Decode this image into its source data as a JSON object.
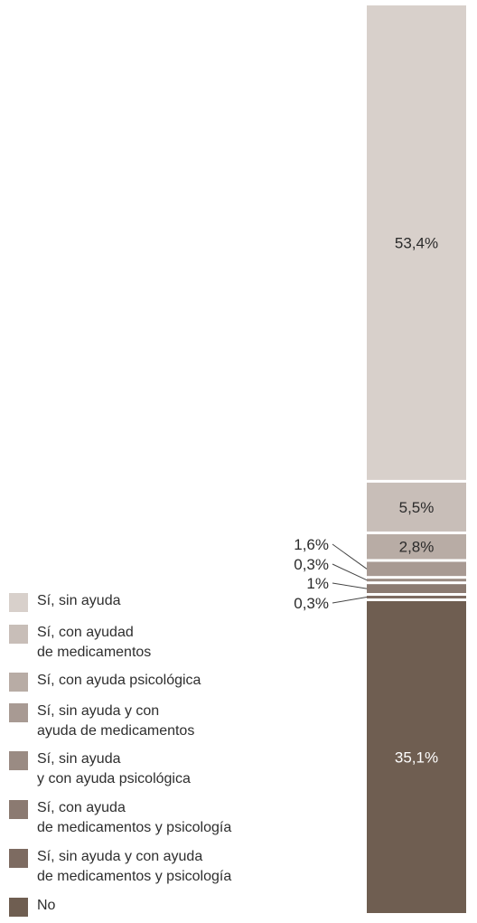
{
  "chart_data": {
    "type": "bar",
    "stacked": true,
    "orientation": "vertical",
    "series": [
      {
        "name": "Sí, sin ayuda",
        "value": 53.4,
        "label": "53,4%",
        "color": "#d8d0cb"
      },
      {
        "name": "Sí, con ayudad\nde medicamentos",
        "value": 5.5,
        "label": "5,5%",
        "color": "#c8beb8"
      },
      {
        "name": "Sí, con ayuda psicológica",
        "value": 2.8,
        "label": "2,8%",
        "color": "#b8aca5"
      },
      {
        "name": "Sí, sin ayuda y con\nayuda de medicamentos",
        "value": 1.6,
        "label": "1,6%",
        "color": "#a89a93"
      },
      {
        "name": "Sí, sin ayuda\ny con ayuda psicológica",
        "value": 0.3,
        "label": "0,3%",
        "color": "#9a8b83"
      },
      {
        "name": "Sí, con ayuda\nde medicamentos y psicología",
        "value": 1.0,
        "label": "1%",
        "color": "#8b7a71"
      },
      {
        "name": "Sí, sin ayuda y con ayuda\nde medicamentos y psicología",
        "value": 0.3,
        "label": "0,3%",
        "color": "#7d6b61"
      },
      {
        "name": "No",
        "value": 35.1,
        "label": "35,1%",
        "color": "#6f5e51"
      }
    ],
    "ylim": [
      0,
      100
    ],
    "legend_position": "bottom-left"
  }
}
